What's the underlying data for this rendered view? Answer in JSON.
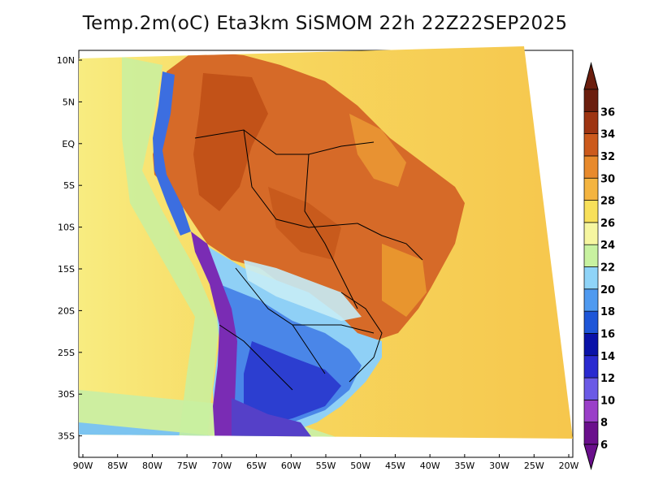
{
  "title": "Temp.2m(oC) Eta3km SiSMOM 22h 22Z22SEP2025",
  "map": {
    "lon_range": [
      -90,
      -20
    ],
    "lat_range": [
      -37,
      12
    ],
    "lon_ticks": [
      {
        "value": -90,
        "label": "90W"
      },
      {
        "value": -85,
        "label": "85W"
      },
      {
        "value": -80,
        "label": "80W"
      },
      {
        "value": -75,
        "label": "75W"
      },
      {
        "value": -70,
        "label": "70W"
      },
      {
        "value": -65,
        "label": "65W"
      },
      {
        "value": -60,
        "label": "60W"
      },
      {
        "value": -55,
        "label": "55W"
      },
      {
        "value": -50,
        "label": "50W"
      },
      {
        "value": -45,
        "label": "45W"
      },
      {
        "value": -40,
        "label": "40W"
      },
      {
        "value": -35,
        "label": "35W"
      },
      {
        "value": -30,
        "label": "30W"
      },
      {
        "value": -25,
        "label": "25W"
      },
      {
        "value": -20,
        "label": "20W"
      }
    ],
    "lat_ticks": [
      {
        "value": 10,
        "label": "10N"
      },
      {
        "value": 5,
        "label": "5N"
      },
      {
        "value": 0,
        "label": "EQ"
      },
      {
        "value": -5,
        "label": "5S"
      },
      {
        "value": -10,
        "label": "10S"
      },
      {
        "value": -15,
        "label": "15S"
      },
      {
        "value": -20,
        "label": "20S"
      },
      {
        "value": -25,
        "label": "25S"
      },
      {
        "value": -30,
        "label": "30S"
      },
      {
        "value": -35,
        "label": "35S"
      }
    ]
  },
  "colorbar": {
    "labels": [
      "6",
      "8",
      "10",
      "12",
      "14",
      "16",
      "18",
      "20",
      "22",
      "24",
      "26",
      "28",
      "30",
      "32",
      "34",
      "36"
    ],
    "colors": [
      "#6a0f8c",
      "#9a3fc8",
      "#6b5ae6",
      "#2a2ad0",
      "#0a12a8",
      "#1e56d8",
      "#4f9af0",
      "#8fd4f8",
      "#c8f2a0",
      "#f6f6a0",
      "#f8e05a",
      "#f4b440",
      "#e88a2c",
      "#cc5a1c",
      "#9e3512",
      "#6b1e0e"
    ]
  },
  "regions": {
    "ocean": "#f6c84e",
    "ocean_cool": "#f8e27e",
    "land_hot": "#d86a28",
    "land_very_hot": "#c8561c",
    "land_warm": "#e8922e",
    "south_cool": "#5aa8ec",
    "south_cold": "#3c5ed8",
    "andes": "#7d2fb6",
    "patagonia": "#5a3ec4"
  }
}
